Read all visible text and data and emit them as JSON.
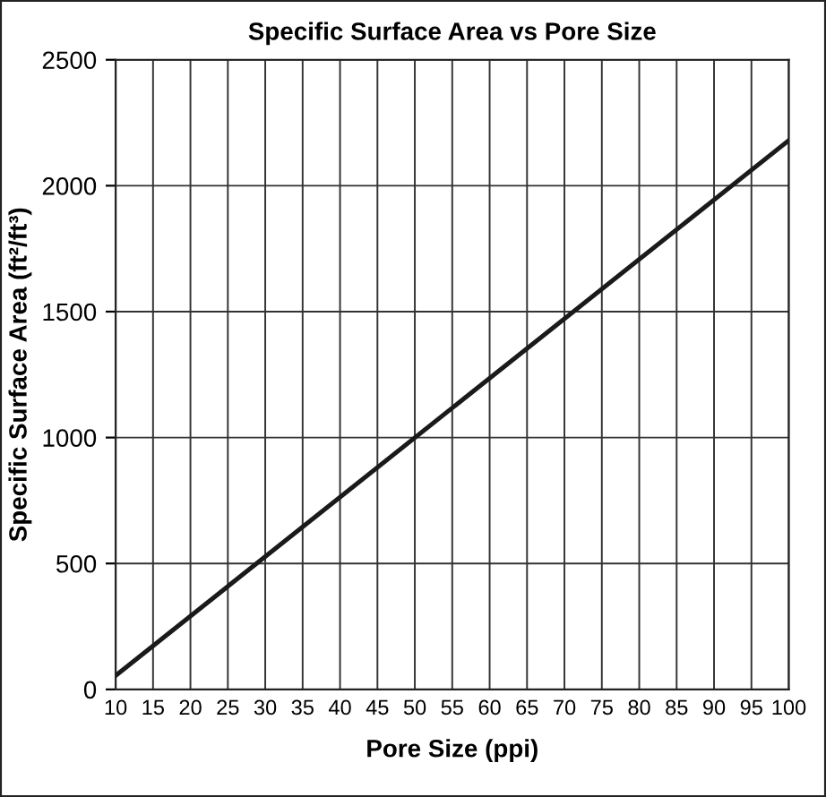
{
  "chart_data": {
    "type": "line",
    "title": "Specific Surface Area vs Pore Size",
    "xlabel": "Pore Size (ppi)",
    "ylabel": "Specific Surface Area (ft²/ft³)",
    "x": [
      10,
      100
    ],
    "series": [
      {
        "color": "#1a1a1a",
        "values": [
          55,
          2180
        ]
      }
    ],
    "xlim": [
      10,
      100
    ],
    "xticks": [
      10,
      15,
      20,
      25,
      30,
      35,
      40,
      45,
      50,
      55,
      60,
      65,
      70,
      75,
      80,
      85,
      90,
      95,
      100
    ],
    "ylim": [
      0,
      2500
    ],
    "yticks": [
      0,
      500,
      1000,
      1500,
      2000,
      2500
    ],
    "grid": true,
    "legend": false,
    "marker": "none",
    "line_style": "solid"
  }
}
